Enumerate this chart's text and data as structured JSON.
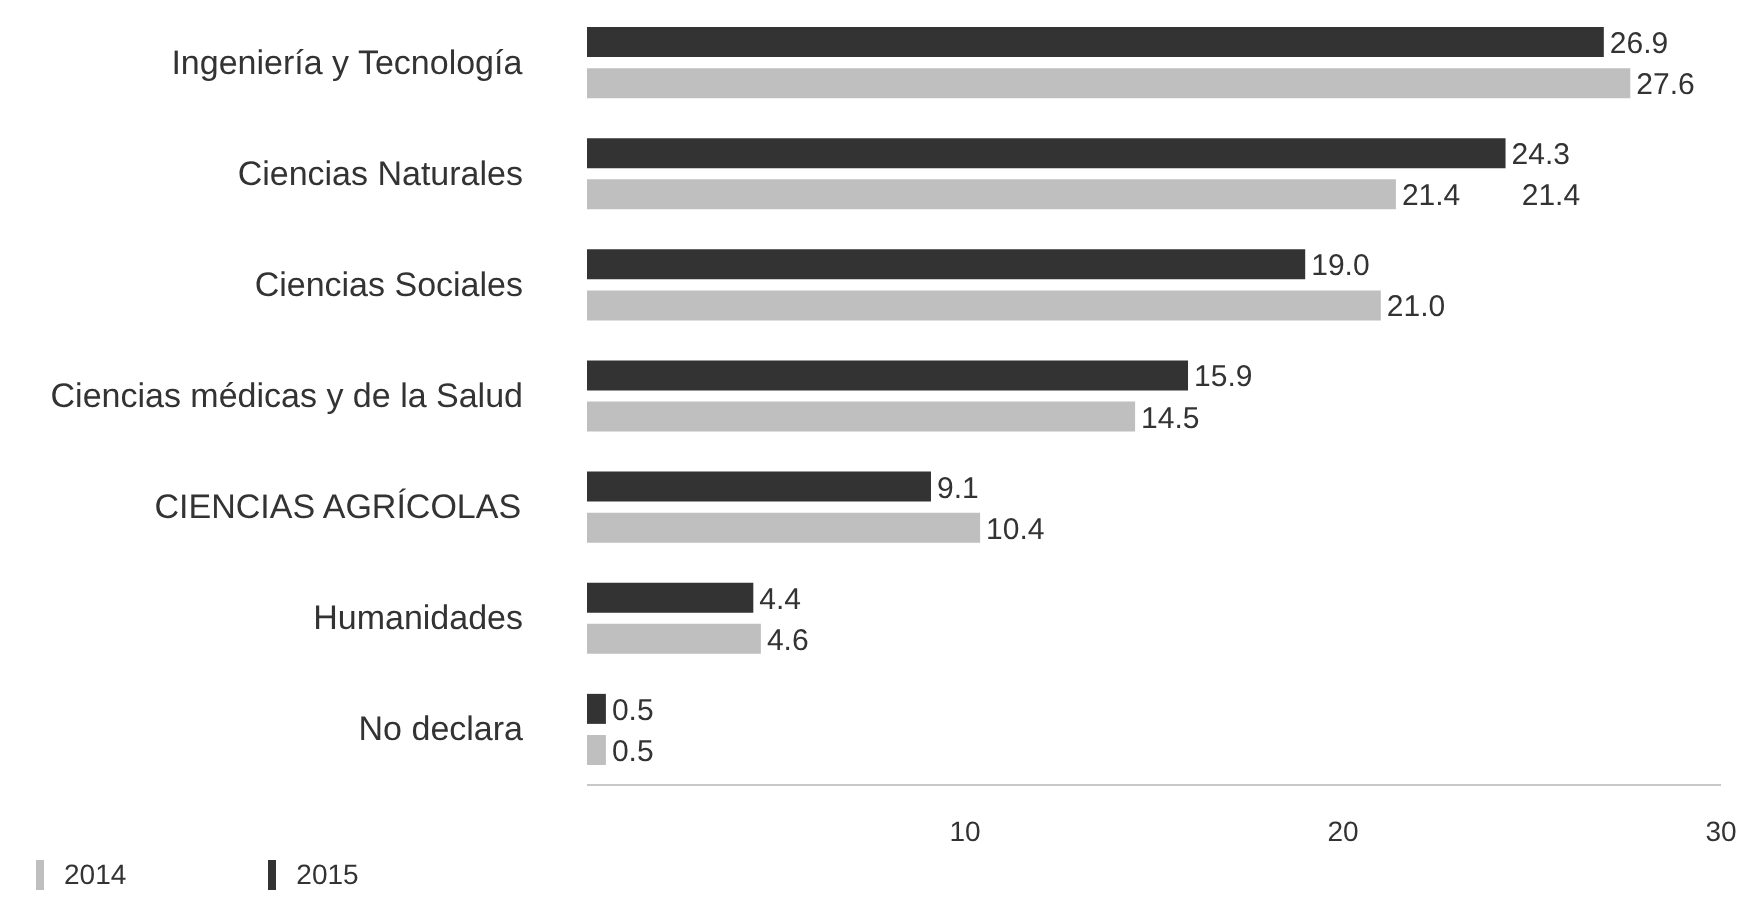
{
  "chart_data": {
    "type": "bar",
    "orientation": "horizontal",
    "categories": [
      "Ingeniería y Tecnología",
      "Ciencias Naturales",
      "Ciencias Sociales",
      "Ciencias médicas y de la Salud",
      "CIENCIAS AGRÍCOLAS",
      "Humanidades",
      "No declara"
    ],
    "series": [
      {
        "name": "2014",
        "color": "#bfbfbf",
        "values": [
          27.6,
          21.4,
          21.0,
          14.5,
          10.4,
          4.6,
          0.5
        ],
        "value_labels": [
          "27.6",
          "21.4",
          "21.0",
          "14.5",
          "10.4",
          "4.6",
          "0.5"
        ]
      },
      {
        "name": "2015",
        "color": "#333333",
        "values": [
          26.9,
          24.3,
          19.0,
          15.9,
          9.1,
          4.4,
          0.5
        ],
        "value_labels": [
          "26.9",
          "24.3",
          "19.0",
          "15.9",
          "9.1",
          "4.4",
          "0.5"
        ]
      }
    ],
    "xlim": [
      0,
      30
    ],
    "xticks": [
      10,
      20,
      30
    ],
    "annotations": [
      "21.4"
    ],
    "legend": "bottom left",
    "grid": false
  }
}
